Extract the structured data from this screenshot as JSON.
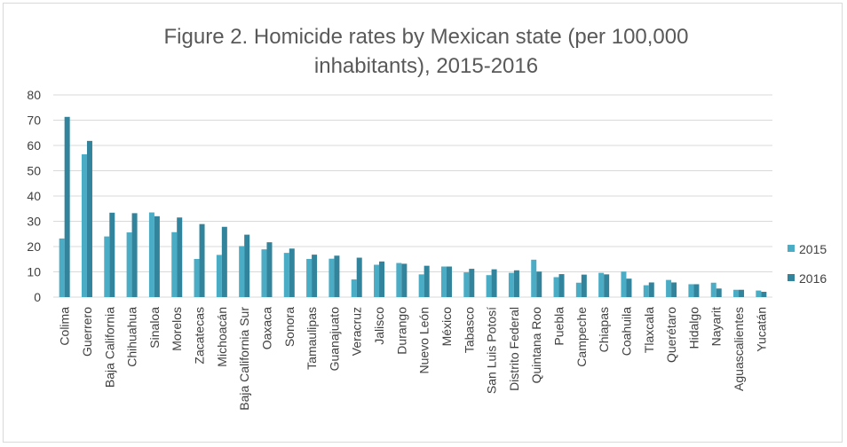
{
  "chart_data": {
    "type": "bar",
    "title_line1": "Figure 2. Homicide rates by Mexican state (per 100,000",
    "title_line2": "inhabitants), 2015-2016",
    "xlabel": "",
    "ylabel": "",
    "ylim": [
      0,
      80
    ],
    "yticks": [
      "0",
      "10",
      "20",
      "30",
      "40",
      "50",
      "60",
      "70",
      "80"
    ],
    "grid": true,
    "legend_position": "right",
    "categories": [
      "Colima",
      "Guerrero",
      "Baja California",
      "Chihuahua",
      "Sinaloa",
      "Morelos",
      "Zacatecas",
      "Michoacán",
      "Baja California Sur",
      "Oaxaca",
      "Sonora",
      "Tamaulipas",
      "Guanajuato",
      "Veracruz",
      "Jalisco",
      "Durango",
      "Nuevo León",
      "México",
      "Tabasco",
      "San Luis Potosí",
      "Distrito Federal",
      "Quintana Roo",
      "Puebla",
      "Campeche",
      "Chiapas",
      "Coahuila",
      "Tlaxcala",
      "Querétaro",
      "Hidalgo",
      "Nayarit",
      "Aguascalientes",
      "Yucatán"
    ],
    "series": [
      {
        "name": "2015",
        "color": "#4BACC6",
        "values": [
          23.2,
          56.5,
          24.0,
          25.6,
          33.5,
          25.7,
          15.1,
          16.7,
          20.2,
          18.9,
          17.5,
          15.1,
          15.2,
          7.0,
          12.8,
          13.5,
          9.0,
          12.1,
          9.8,
          8.7,
          9.6,
          14.8,
          7.9,
          5.7,
          9.6,
          10.1,
          4.7,
          6.8,
          5.1,
          5.7,
          2.9,
          2.6
        ],
        "label": "2015"
      },
      {
        "name": "2016",
        "color": "#31849B",
        "values": [
          71.3,
          61.8,
          33.4,
          33.2,
          32.0,
          31.5,
          28.9,
          27.8,
          24.7,
          21.7,
          19.2,
          16.8,
          16.4,
          15.6,
          14.1,
          13.2,
          12.4,
          12.1,
          11.2,
          11.0,
          10.6,
          10.1,
          9.1,
          8.9,
          9.0,
          7.3,
          5.8,
          5.8,
          5.1,
          3.4,
          2.9,
          2.1
        ],
        "label": "2016"
      }
    ]
  }
}
